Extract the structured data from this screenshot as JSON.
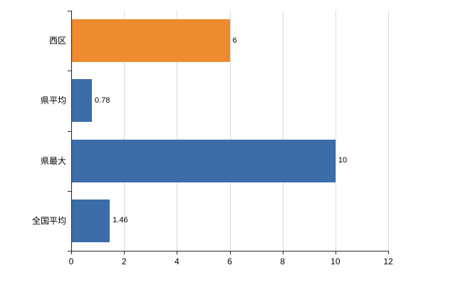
{
  "chart_data": {
    "type": "bar",
    "orientation": "horizontal",
    "categories": [
      "西区",
      "県平均",
      "県最大",
      "全国平均"
    ],
    "values": [
      6,
      0.78,
      10,
      1.46
    ],
    "value_labels": [
      "6",
      "0.78",
      "10",
      "1.46"
    ],
    "bar_colors": [
      "#EE8A2F",
      "#3C6DA8",
      "#3C6DA8",
      "#3C6DA8"
    ],
    "xlim": [
      0,
      12
    ],
    "x_ticks": [
      0,
      2,
      4,
      6,
      8,
      10,
      12
    ],
    "grid": true,
    "legend": "none"
  },
  "colors": {
    "grid": "#d9d9d9",
    "axis": "#262626",
    "text": "#000000",
    "background": "#ffffff"
  }
}
